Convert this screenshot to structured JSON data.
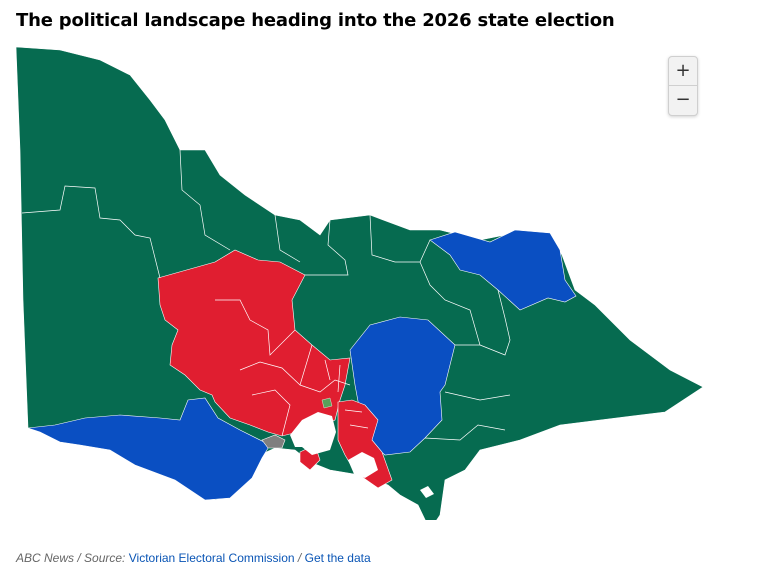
{
  "title": "The political landscape heading into the 2026 state election",
  "zoom": {
    "in_label": "+",
    "out_label": "−"
  },
  "footer": {
    "credit": "ABC News",
    "source_prefix": "Source:",
    "source_link": "Victorian Electoral Commission",
    "data_link": "Get the data"
  },
  "colors": {
    "green_party": "#066b50",
    "red_party": "#e01e30",
    "blue_party": "#0a4fc2",
    "other": "#7f7f7f",
    "background": "#ffffff"
  },
  "icons": [
    "plus-icon",
    "minus-icon"
  ]
}
